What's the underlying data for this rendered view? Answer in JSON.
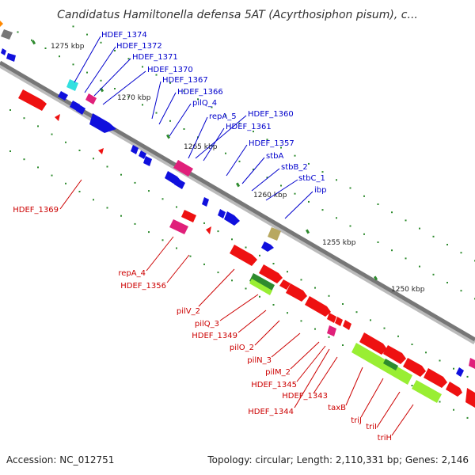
{
  "title": "Candidatus Hamiltonella defensa 5AT (Acyrthosiphon pisum), c...",
  "footer": {
    "accession": "Accession: NC_012751",
    "topology": "Topology: circular; Length: 2,110,331 bp; Genes: 2,146"
  },
  "colors": {
    "backbone": "#777777",
    "tick": "#2e8b2e",
    "gene_forward": "#1010dd",
    "gene_reverse": "#ee1111",
    "forward_label": "#0000cc",
    "reverse_label": "#cc0000",
    "pink": "#e0207a",
    "cyan": "#33e0e0",
    "olive": "#b8a860",
    "green_dark": "#2e8b2e",
    "green_light": "#99ee33"
  },
  "kbp_labels": [
    "1275 kbp",
    "1270 kbp",
    "1265 kbp",
    "1260 kbp",
    "1255 kbp",
    "1250 kbp"
  ],
  "forward_labels": [
    "HDEF_1374",
    "HDEF_1372",
    "HDEF_1371",
    "HDEF_1370",
    "HDEF_1367",
    "HDEF_1366",
    "pilQ_4",
    "repA_5",
    "HDEF_1360",
    "HDEF_1361",
    "HDEF_1357",
    "stbA",
    "stbB_2",
    "stbC_1",
    "ibp"
  ],
  "reverse_labels": [
    "HDEF_1369",
    "repA_4",
    "HDEF_1356",
    "pilV_2",
    "pilQ_3",
    "HDEF_1349",
    "pilO_2",
    "pilN_3",
    "pilM_2",
    "HDEF_1345",
    "HDEF_1343",
    "HDEF_1344",
    "taxB",
    "triJ",
    "triI",
    "triH"
  ]
}
